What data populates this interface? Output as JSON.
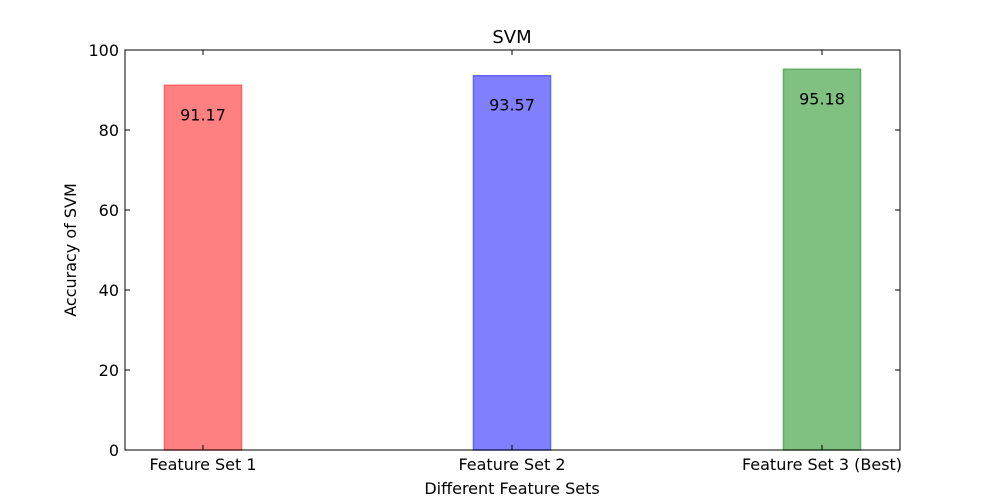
{
  "chart_data": {
    "type": "bar",
    "title": "SVM",
    "xlabel": "Different Feature Sets",
    "ylabel": "Accuracy of SVM",
    "ylim": [
      0,
      100
    ],
    "yticks": [
      0,
      20,
      40,
      60,
      80,
      100
    ],
    "categories": [
      "Feature Set 1",
      "Feature Set 2",
      "Feature Set 3 (Best)"
    ],
    "values": [
      91.17,
      93.57,
      95.18
    ],
    "value_labels": [
      "91.17",
      "93.57",
      "95.18"
    ],
    "colors": [
      "#ff8080",
      "#8080ff",
      "#80c080"
    ],
    "edge_colors": [
      "#ff6060",
      "#6060ff",
      "#60ac60"
    ],
    "grid": false
  }
}
